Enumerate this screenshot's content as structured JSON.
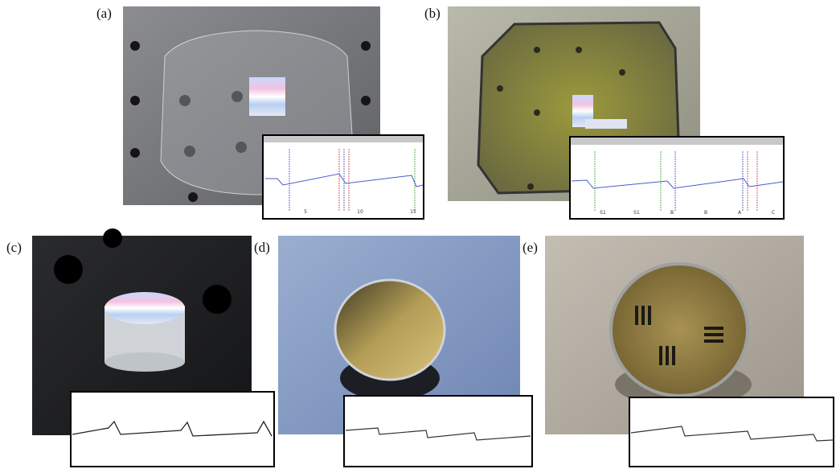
{
  "panels": [
    {
      "label": "(a)",
      "inset_ticks": [
        "5",
        "10",
        "15"
      ]
    },
    {
      "label": "(b)",
      "inset_ticks": [
        "S1",
        "S1",
        "B",
        "B",
        "A",
        "C"
      ]
    },
    {
      "label": "(c)"
    },
    {
      "label": "(d)"
    },
    {
      "label": "(e)"
    }
  ]
}
